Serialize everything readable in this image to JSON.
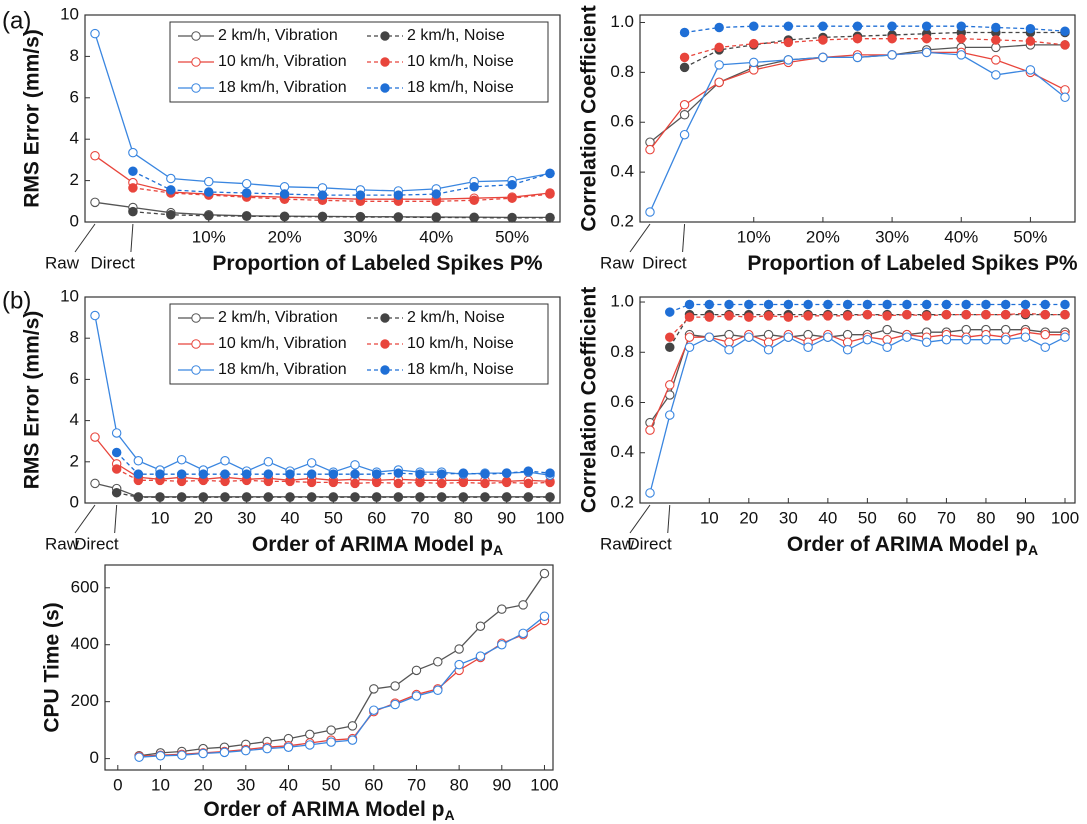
{
  "panel_labels": [
    "(a)",
    "(b)"
  ],
  "chart_data": [
    {
      "type": "line",
      "y_label": "RMS Error (mm/s)",
      "x_label": "Proportion of Labeled Spikes P%",
      "categories": [
        "Raw",
        "Direct",
        null,
        "10%",
        null,
        "20%",
        null,
        "30%",
        null,
        "40%",
        null,
        "50%",
        null
      ],
      "ylim": [
        0,
        10
      ],
      "yticks": [
        0,
        2,
        4,
        6,
        8,
        10
      ],
      "legend": "upper right",
      "series": [
        {
          "name": "2 km/h, Vibration",
          "color": "#555555",
          "marker": "open",
          "dashed": false,
          "values": [
            0.95,
            0.7,
            0.45,
            0.35,
            0.3,
            0.28,
            0.27,
            0.26,
            0.25,
            0.24,
            0.23,
            0.22,
            0.22
          ]
        },
        {
          "name": "2 km/h, Noise",
          "color": "#444444",
          "marker": "filled",
          "dashed": true,
          "values": [
            null,
            0.5,
            0.35,
            0.3,
            0.28,
            0.26,
            0.25,
            0.24,
            0.23,
            0.22,
            0.21,
            0.2,
            0.2
          ]
        },
        {
          "name": "10 km/h, Vibration",
          "color": "#e8453c",
          "marker": "open",
          "dashed": false,
          "values": [
            3.2,
            1.9,
            1.45,
            1.35,
            1.25,
            1.2,
            1.15,
            1.1,
            1.1,
            1.1,
            1.15,
            1.2,
            1.4
          ]
        },
        {
          "name": "10 km/h, Noise",
          "color": "#e8453c",
          "marker": "filled",
          "dashed": true,
          "values": [
            null,
            1.65,
            1.4,
            1.3,
            1.2,
            1.1,
            1.05,
            1.0,
            1.0,
            1.0,
            1.05,
            1.15,
            1.35
          ]
        },
        {
          "name": "18 km/h, Vibration",
          "color": "#3a86e0",
          "marker": "open",
          "dashed": false,
          "values": [
            9.1,
            3.35,
            2.1,
            1.95,
            1.85,
            1.7,
            1.65,
            1.55,
            1.5,
            1.6,
            1.95,
            2.0,
            2.35
          ]
        },
        {
          "name": "18 km/h, Noise",
          "color": "#1f6fd6",
          "marker": "filled",
          "dashed": true,
          "values": [
            null,
            2.45,
            1.55,
            1.45,
            1.4,
            1.35,
            1.3,
            1.3,
            1.3,
            1.35,
            1.7,
            1.8,
            2.35
          ]
        }
      ]
    },
    {
      "type": "line",
      "y_label": "Correlation Coefficient",
      "x_label": "Proportion of Labeled Spikes P%",
      "categories": [
        "Raw",
        "Direct",
        null,
        "10%",
        null,
        "20%",
        null,
        "30%",
        null,
        "40%",
        null,
        "50%",
        null
      ],
      "ylim": [
        0.2,
        1.03
      ],
      "yticks": [
        0.2,
        0.4,
        0.6,
        0.8,
        {
          "value": 1,
          "label": "1.0"
        }
      ],
      "series": [
        {
          "color": "#555555",
          "marker": "open",
          "dashed": false,
          "values": [
            0.52,
            0.63,
            0.76,
            0.82,
            0.85,
            0.86,
            0.86,
            0.87,
            0.89,
            0.9,
            0.9,
            0.91,
            0.91
          ]
        },
        {
          "color": "#444444",
          "marker": "filled",
          "dashed": true,
          "values": [
            null,
            0.82,
            0.89,
            0.91,
            0.93,
            0.94,
            0.945,
            0.95,
            0.955,
            0.96,
            0.96,
            0.96,
            0.96
          ]
        },
        {
          "color": "#e8453c",
          "marker": "open",
          "dashed": false,
          "values": [
            0.49,
            0.67,
            0.76,
            0.81,
            0.84,
            0.86,
            0.87,
            0.87,
            0.88,
            0.88,
            0.85,
            0.8,
            0.73
          ]
        },
        {
          "color": "#e8453c",
          "marker": "filled",
          "dashed": true,
          "values": [
            null,
            0.86,
            0.9,
            0.915,
            0.92,
            0.93,
            0.935,
            0.935,
            0.935,
            0.935,
            0.93,
            0.925,
            0.91
          ]
        },
        {
          "color": "#3a86e0",
          "marker": "open",
          "dashed": false,
          "values": [
            0.24,
            0.55,
            0.83,
            0.84,
            0.85,
            0.86,
            0.86,
            0.87,
            0.88,
            0.87,
            0.79,
            0.81,
            0.7
          ]
        },
        {
          "color": "#1f6fd6",
          "marker": "filled",
          "dashed": true,
          "values": [
            null,
            0.96,
            0.98,
            0.985,
            0.985,
            0.985,
            0.985,
            0.985,
            0.985,
            0.985,
            0.98,
            0.975,
            0.965
          ]
        }
      ]
    },
    {
      "type": "line",
      "y_label": "RMS Error (mm/s)",
      "x_label": "Order of ARIMA Model p",
      "x_label_sub": "A",
      "categories": [
        "Raw",
        "Direct",
        null,
        "10",
        null,
        "20",
        null,
        "30",
        null,
        "40",
        null,
        "50",
        null,
        "60",
        null,
        "70",
        null,
        "80",
        null,
        "90",
        null,
        "100"
      ],
      "ylim": [
        0,
        10
      ],
      "yticks": [
        0,
        2,
        4,
        6,
        8,
        10
      ],
      "legend": "upper right",
      "series": [
        {
          "name": "2 km/h, Vibration",
          "color": "#555555",
          "marker": "open",
          "dashed": false,
          "values": [
            0.95,
            0.7,
            0.3,
            0.3,
            0.3,
            0.3,
            0.3,
            0.3,
            0.3,
            0.3,
            0.3,
            0.3,
            0.3,
            0.3,
            0.3,
            0.3,
            0.3,
            0.3,
            0.3,
            0.3,
            0.3,
            0.3
          ]
        },
        {
          "name": "2 km/h, Noise",
          "color": "#444444",
          "marker": "filled",
          "dashed": true,
          "values": [
            null,
            0.5,
            0.28,
            0.28,
            0.28,
            0.28,
            0.28,
            0.28,
            0.28,
            0.28,
            0.28,
            0.28,
            0.28,
            0.28,
            0.28,
            0.28,
            0.28,
            0.28,
            0.28,
            0.28,
            0.28,
            0.28
          ]
        },
        {
          "name": "10 km/h, Vibration",
          "color": "#e8453c",
          "marker": "open",
          "dashed": false,
          "values": [
            3.2,
            1.9,
            1.25,
            1.15,
            1.25,
            1.15,
            1.25,
            1.15,
            1.2,
            1.1,
            1.2,
            1.1,
            1.15,
            1.1,
            1.15,
            1.1,
            1.1,
            1.1,
            1.1,
            1.05,
            1.1,
            1.05
          ]
        },
        {
          "name": "10 km/h, Noise",
          "color": "#e8453c",
          "marker": "filled",
          "dashed": true,
          "values": [
            null,
            1.65,
            1.1,
            1.1,
            1.05,
            1.1,
            1.05,
            1.1,
            1.05,
            1.05,
            1.0,
            1.0,
            0.95,
            1.0,
            0.95,
            1.0,
            0.95,
            1.0,
            0.95,
            1.0,
            0.95,
            1.0
          ]
        },
        {
          "name": "18 km/h, Vibration",
          "color": "#3a86e0",
          "marker": "open",
          "dashed": false,
          "values": [
            9.1,
            3.4,
            2.05,
            1.6,
            2.1,
            1.6,
            2.05,
            1.55,
            2.0,
            1.55,
            1.95,
            1.5,
            1.85,
            1.5,
            1.6,
            1.5,
            1.5,
            1.4,
            1.45,
            1.45,
            1.5,
            1.35
          ]
        },
        {
          "name": "18 km/h, Noise",
          "color": "#1f6fd6",
          "marker": "filled",
          "dashed": true,
          "values": [
            null,
            2.45,
            1.4,
            1.4,
            1.4,
            1.4,
            1.4,
            1.4,
            1.4,
            1.4,
            1.4,
            1.4,
            1.4,
            1.4,
            1.45,
            1.4,
            1.4,
            1.45,
            1.4,
            1.45,
            1.55,
            1.45
          ]
        }
      ]
    },
    {
      "type": "line",
      "y_label": "Correlation Coefficient",
      "x_label": "Order of ARIMA Model p",
      "x_label_sub": "A",
      "categories": [
        "Raw",
        "Direct",
        null,
        "10",
        null,
        "20",
        null,
        "30",
        null,
        "40",
        null,
        "50",
        null,
        "60",
        null,
        "70",
        null,
        "80",
        null,
        "90",
        null,
        "100"
      ],
      "ylim": [
        0.2,
        1.02
      ],
      "yticks": [
        0.2,
        0.4,
        0.6,
        0.8,
        {
          "value": 1,
          "label": "1.0"
        }
      ],
      "series": [
        {
          "color": "#555555",
          "marker": "open",
          "dashed": false,
          "values": [
            0.52,
            0.63,
            0.87,
            0.86,
            0.87,
            0.86,
            0.87,
            0.86,
            0.87,
            0.86,
            0.87,
            0.87,
            0.89,
            0.87,
            0.88,
            0.88,
            0.89,
            0.89,
            0.89,
            0.89,
            0.88,
            0.88
          ]
        },
        {
          "color": "#444444",
          "marker": "filled",
          "dashed": true,
          "values": [
            null,
            0.82,
            0.95,
            0.95,
            0.95,
            0.95,
            0.95,
            0.95,
            0.95,
            0.95,
            0.95,
            0.95,
            0.95,
            0.95,
            0.95,
            0.95,
            0.95,
            0.95,
            0.95,
            0.95,
            0.95,
            0.95
          ]
        },
        {
          "color": "#e8453c",
          "marker": "open",
          "dashed": false,
          "values": [
            0.49,
            0.67,
            0.86,
            0.86,
            0.84,
            0.87,
            0.84,
            0.87,
            0.84,
            0.87,
            0.84,
            0.86,
            0.85,
            0.87,
            0.86,
            0.87,
            0.86,
            0.87,
            0.86,
            0.88,
            0.87,
            0.87
          ]
        },
        {
          "color": "#e8453c",
          "marker": "filled",
          "dashed": true,
          "values": [
            null,
            0.86,
            0.94,
            0.94,
            0.945,
            0.94,
            0.945,
            0.94,
            0.945,
            0.945,
            0.945,
            0.95,
            0.945,
            0.95,
            0.945,
            0.95,
            0.95,
            0.95,
            0.95,
            0.955,
            0.95,
            0.95
          ]
        },
        {
          "color": "#3a86e0",
          "marker": "open",
          "dashed": false,
          "values": [
            0.24,
            0.55,
            0.82,
            0.86,
            0.81,
            0.86,
            0.81,
            0.86,
            0.82,
            0.86,
            0.81,
            0.85,
            0.82,
            0.86,
            0.84,
            0.85,
            0.85,
            0.85,
            0.85,
            0.86,
            0.82,
            0.86
          ]
        },
        {
          "color": "#1f6fd6",
          "marker": "filled",
          "dashed": true,
          "values": [
            null,
            0.96,
            0.99,
            0.99,
            0.99,
            0.99,
            0.99,
            0.99,
            0.99,
            0.99,
            0.99,
            0.99,
            0.99,
            0.99,
            0.99,
            0.99,
            0.99,
            0.99,
            0.99,
            0.99,
            0.99,
            0.99
          ]
        }
      ]
    },
    {
      "type": "line",
      "y_label": "CPU Time (s)",
      "x_label": "Order of ARIMA Model p",
      "x_label_sub": "A",
      "x": [
        5,
        10,
        15,
        20,
        25,
        30,
        35,
        40,
        45,
        50,
        55,
        60,
        65,
        70,
        75,
        80,
        85,
        90,
        95,
        100
      ],
      "xlim": [
        -3,
        102
      ],
      "xticks": [
        0,
        10,
        20,
        30,
        40,
        50,
        60,
        70,
        80,
        90,
        100
      ],
      "ylim": [
        -40,
        680
      ],
      "yticks": [
        0,
        200,
        400,
        600
      ],
      "series": [
        {
          "color": "#555555",
          "marker": "open",
          "dashed": false,
          "values": [
            10,
            20,
            25,
            35,
            40,
            50,
            60,
            70,
            85,
            100,
            115,
            245,
            255,
            310,
            340,
            385,
            465,
            525,
            540,
            650
          ]
        },
        {
          "color": "#e8453c",
          "marker": "open",
          "dashed": false,
          "values": [
            8,
            12,
            15,
            20,
            25,
            32,
            40,
            45,
            55,
            65,
            70,
            165,
            195,
            225,
            245,
            310,
            355,
            405,
            435,
            485
          ]
        },
        {
          "color": "#3a86e0",
          "marker": "open",
          "dashed": false,
          "values": [
            5,
            10,
            12,
            18,
            22,
            28,
            35,
            40,
            48,
            58,
            65,
            170,
            190,
            220,
            240,
            330,
            360,
            400,
            440,
            500
          ]
        }
      ]
    }
  ]
}
